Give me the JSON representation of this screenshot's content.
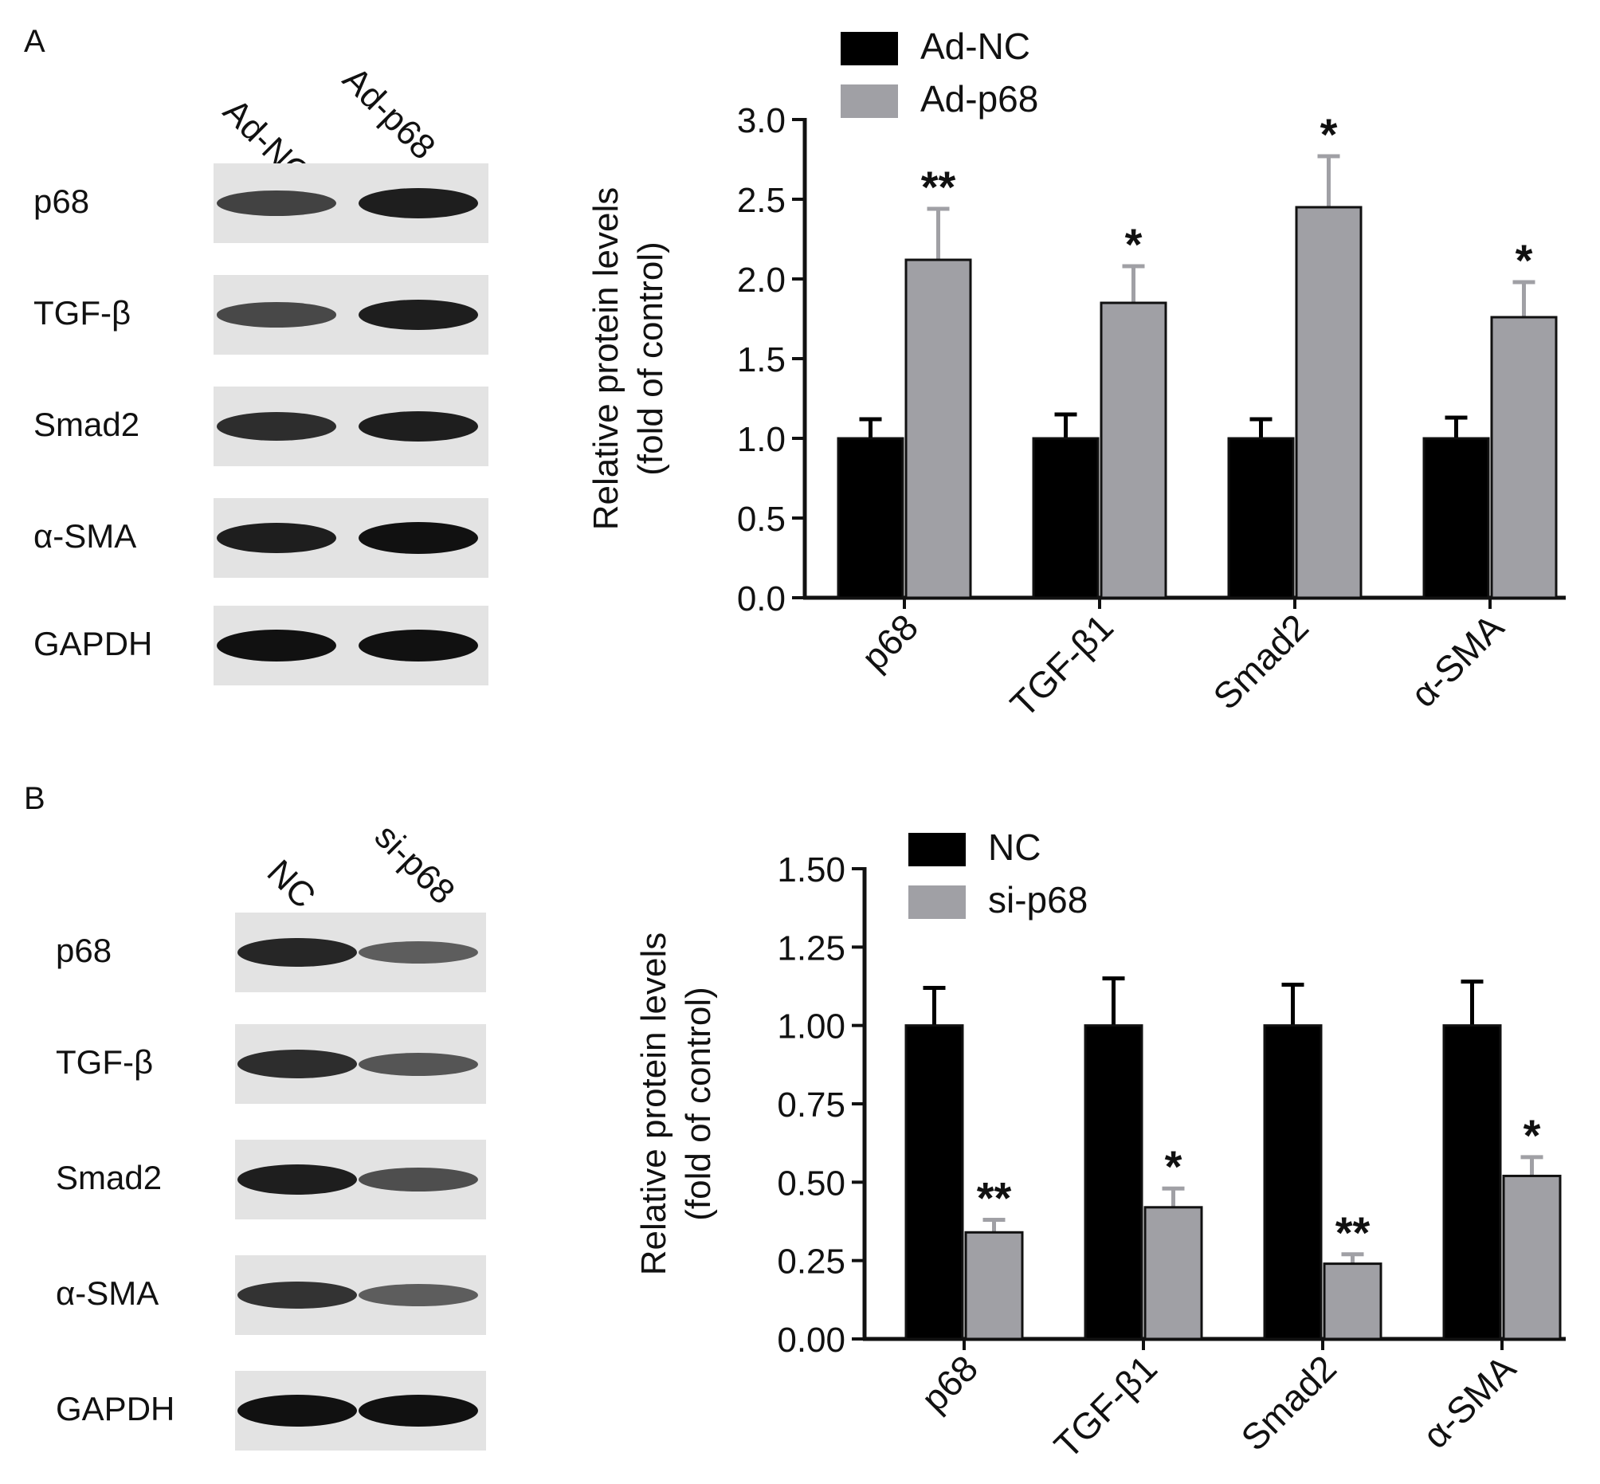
{
  "panels": [
    {
      "letter": "A",
      "blot": {
        "lanes": [
          "Ad-NC",
          "Ad-p68"
        ],
        "rows": [
          {
            "label": "p68",
            "intensity": [
              0.65,
              0.9
            ]
          },
          {
            "label": "TGF-β",
            "intensity": [
              0.6,
              0.9
            ]
          },
          {
            "label": "Smad2",
            "intensity": [
              0.8,
              0.9
            ]
          },
          {
            "label": "α-SMA",
            "intensity": [
              0.9,
              1.0
            ]
          },
          {
            "label": "GAPDH",
            "intensity": [
              1.0,
              1.0
            ]
          }
        ]
      }
    },
    {
      "letter": "B",
      "blot": {
        "lanes": [
          "NC",
          "si-p68"
        ],
        "rows": [
          {
            "label": "p68",
            "intensity": [
              0.85,
              0.45
            ]
          },
          {
            "label": "TGF-β",
            "intensity": [
              0.8,
              0.5
            ]
          },
          {
            "label": "Smad2",
            "intensity": [
              0.9,
              0.55
            ]
          },
          {
            "label": "α-SMA",
            "intensity": [
              0.75,
              0.45
            ]
          },
          {
            "label": "GAPDH",
            "intensity": [
              1.0,
              1.0
            ]
          }
        ]
      }
    }
  ],
  "chart_data": [
    {
      "type": "bar",
      "title": "",
      "xlabel": "",
      "ylabel": [
        "Relative protein levels",
        "(fold of control)"
      ],
      "categories": [
        "p68",
        "TGF-β1",
        "Smad2",
        "α-SMA"
      ],
      "ylim": [
        0,
        3.0
      ],
      "yticks": [
        "0.0",
        "0.5",
        "1.0",
        "1.5",
        "2.0",
        "2.5",
        "3.0"
      ],
      "legend_position": "top-left",
      "grid": false,
      "series": [
        {
          "name": "Ad-NC",
          "color": "#000000",
          "values": [
            1.0,
            1.0,
            1.0,
            1.0
          ],
          "errors": [
            0.12,
            0.15,
            0.12,
            0.13
          ],
          "annotations": [
            "",
            "",
            "",
            ""
          ]
        },
        {
          "name": "Ad-p68",
          "color": "#a0a0a5",
          "values": [
            2.12,
            1.85,
            2.45,
            1.76
          ],
          "errors": [
            0.32,
            0.23,
            0.32,
            0.22
          ],
          "annotations": [
            "**",
            "*",
            "*",
            "*"
          ]
        }
      ]
    },
    {
      "type": "bar",
      "title": "",
      "xlabel": "",
      "ylabel": [
        "Relative protein levels",
        "(fold of control)"
      ],
      "categories": [
        "p68",
        "TGF-β1",
        "Smad2",
        "α-SMA"
      ],
      "ylim": [
        0,
        1.5
      ],
      "yticks": [
        "0.00",
        "0.25",
        "0.50",
        "0.75",
        "1.00",
        "1.25",
        "1.50"
      ],
      "legend_position": "top-left",
      "grid": false,
      "series": [
        {
          "name": "NC",
          "color": "#000000",
          "values": [
            1.0,
            1.0,
            1.0,
            1.0
          ],
          "errors": [
            0.12,
            0.15,
            0.13,
            0.14
          ],
          "annotations": [
            "",
            "",
            "",
            ""
          ]
        },
        {
          "name": "si-p68",
          "color": "#a0a0a5",
          "values": [
            0.34,
            0.42,
            0.24,
            0.52
          ],
          "errors": [
            0.04,
            0.06,
            0.03,
            0.06
          ],
          "annotations": [
            "**",
            "*",
            "**",
            "*"
          ]
        }
      ]
    }
  ]
}
